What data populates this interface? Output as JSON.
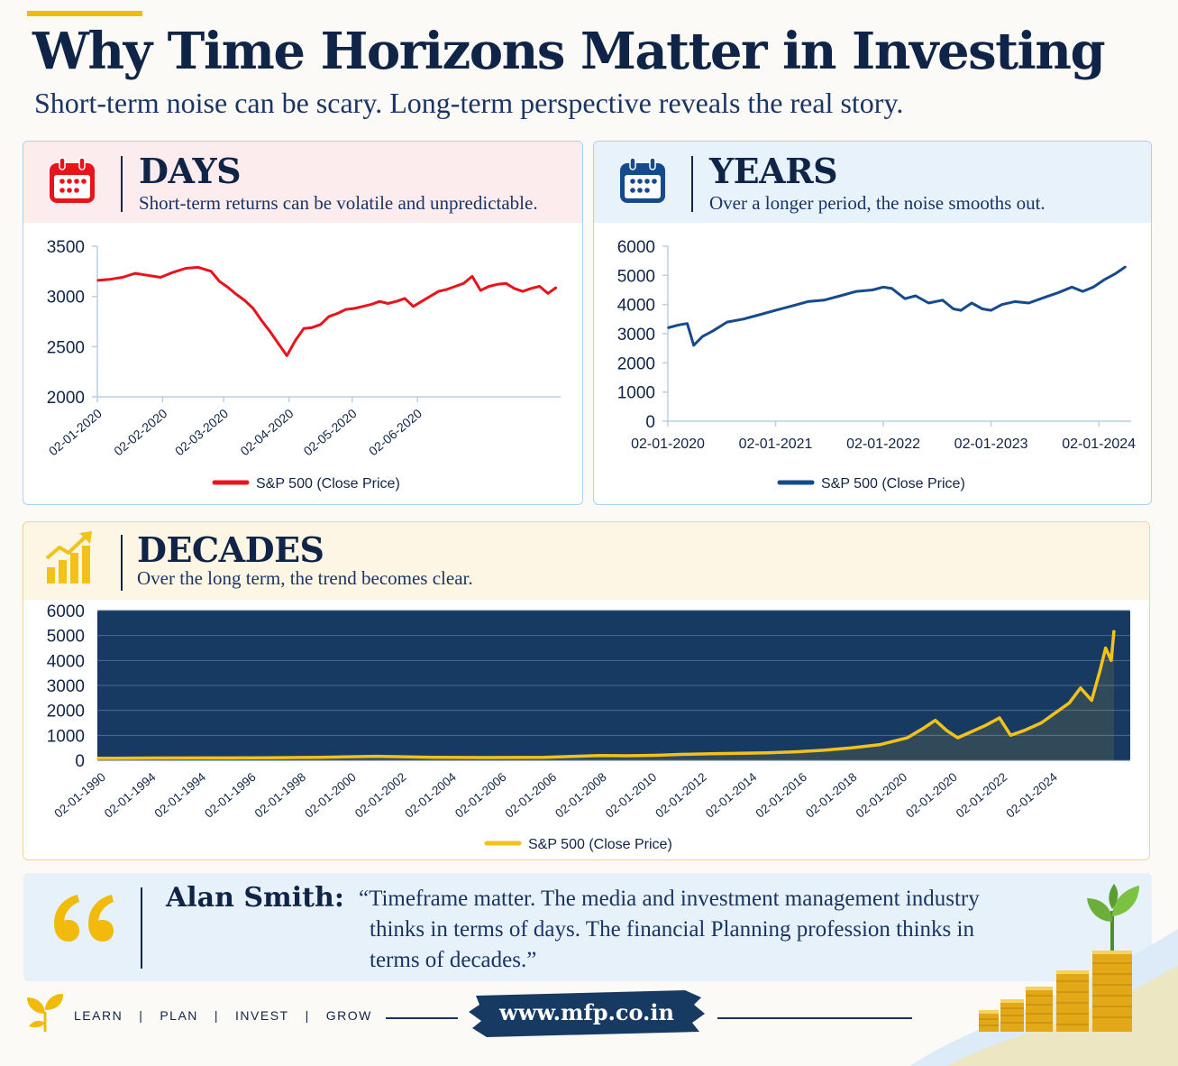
{
  "header": {
    "title": "Why Time Horizons Matter in Investing",
    "subtitle": "Short-term noise can be scary. Long-term perspective reveals the real story."
  },
  "colors": {
    "navy": "#0f2447",
    "days_red": "#e8141b",
    "years_blue": "#154a8c",
    "decades_gold": "#f2c21b",
    "decades_panel": "#173a63"
  },
  "panels": {
    "days": {
      "icon": "calendar-icon",
      "title": "DAYS",
      "description": "Short-term returns can be volatile and unpredictable."
    },
    "years": {
      "icon": "calendar-icon",
      "title": "YEARS",
      "description": "Over a longer period, the noise smooths out."
    },
    "decades": {
      "icon": "growth-chart-icon",
      "title": "DECADES",
      "description": "Over the long term, the trend becomes clear."
    }
  },
  "chart_data": [
    {
      "id": "days",
      "type": "line",
      "ylim": [
        2000,
        3500
      ],
      "yticks": [
        2000,
        2500,
        3000,
        3500
      ],
      "xlim": [
        0,
        220
      ],
      "xticks": [
        {
          "pos": 0,
          "label": "02-01-2020"
        },
        {
          "pos": 31,
          "label": "02-02-2020"
        },
        {
          "pos": 60,
          "label": "02-03-2020"
        },
        {
          "pos": 91,
          "label": "02-04-2020"
        },
        {
          "pos": 121,
          "label": "02-05-2020"
        },
        {
          "pos": 152,
          "label": "02-06-2020"
        }
      ],
      "legend": "bottom-center",
      "grid": false,
      "series": [
        {
          "name": "S&P 500 (Close Price)",
          "points": [
            [
              0,
              3160
            ],
            [
              6,
              3170
            ],
            [
              12,
              3190
            ],
            [
              18,
              3230
            ],
            [
              24,
              3210
            ],
            [
              30,
              3190
            ],
            [
              36,
              3240
            ],
            [
              42,
              3280
            ],
            [
              48,
              3290
            ],
            [
              54,
              3250
            ],
            [
              58,
              3150
            ],
            [
              62,
              3090
            ],
            [
              66,
              3020
            ],
            [
              70,
              2960
            ],
            [
              74,
              2880
            ],
            [
              78,
              2760
            ],
            [
              82,
              2650
            ],
            [
              86,
              2530
            ],
            [
              90,
              2410
            ],
            [
              94,
              2560
            ],
            [
              98,
              2680
            ],
            [
              102,
              2690
            ],
            [
              106,
              2720
            ],
            [
              110,
              2800
            ],
            [
              114,
              2830
            ],
            [
              118,
              2870
            ],
            [
              122,
              2880
            ],
            [
              126,
              2900
            ],
            [
              130,
              2920
            ],
            [
              134,
              2950
            ],
            [
              138,
              2930
            ],
            [
              142,
              2950
            ],
            [
              146,
              2980
            ],
            [
              150,
              2900
            ],
            [
              154,
              2950
            ],
            [
              158,
              3000
            ],
            [
              162,
              3050
            ],
            [
              166,
              3070
            ],
            [
              170,
              3100
            ],
            [
              174,
              3130
            ],
            [
              178,
              3200
            ],
            [
              182,
              3060
            ],
            [
              186,
              3100
            ],
            [
              190,
              3120
            ],
            [
              194,
              3130
            ],
            [
              198,
              3080
            ],
            [
              202,
              3050
            ],
            [
              206,
              3080
            ],
            [
              210,
              3100
            ],
            [
              214,
              3030
            ],
            [
              218,
              3090
            ]
          ]
        }
      ]
    },
    {
      "id": "years",
      "type": "line",
      "ylim": [
        0,
        6000
      ],
      "yticks": [
        0,
        1000,
        2000,
        3000,
        4000,
        5000,
        6000
      ],
      "xlim": [
        0,
        4.3
      ],
      "xticks": [
        {
          "pos": 0,
          "label": "02-01-2020"
        },
        {
          "pos": 1,
          "label": "02-01-2021"
        },
        {
          "pos": 2,
          "label": "02-01-2022"
        },
        {
          "pos": 3,
          "label": "02-01-2023"
        },
        {
          "pos": 4,
          "label": "02-01-2024"
        }
      ],
      "legend": "bottom-center",
      "grid": false,
      "series": [
        {
          "name": "S&P 500 (Close Price)",
          "points": [
            [
              0,
              3200
            ],
            [
              0.1,
              3300
            ],
            [
              0.18,
              3350
            ],
            [
              0.24,
              2600
            ],
            [
              0.32,
              2900
            ],
            [
              0.42,
              3100
            ],
            [
              0.55,
              3400
            ],
            [
              0.7,
              3500
            ],
            [
              0.85,
              3650
            ],
            [
              1.0,
              3800
            ],
            [
              1.15,
              3950
            ],
            [
              1.3,
              4100
            ],
            [
              1.45,
              4150
            ],
            [
              1.6,
              4300
            ],
            [
              1.75,
              4450
            ],
            [
              1.9,
              4500
            ],
            [
              2.0,
              4600
            ],
            [
              2.08,
              4550
            ],
            [
              2.2,
              4200
            ],
            [
              2.3,
              4300
            ],
            [
              2.42,
              4050
            ],
            [
              2.55,
              4150
            ],
            [
              2.65,
              3850
            ],
            [
              2.72,
              3800
            ],
            [
              2.82,
              4050
            ],
            [
              2.92,
              3850
            ],
            [
              3.0,
              3800
            ],
            [
              3.1,
              4000
            ],
            [
              3.22,
              4100
            ],
            [
              3.35,
              4050
            ],
            [
              3.5,
              4250
            ],
            [
              3.62,
              4400
            ],
            [
              3.75,
              4600
            ],
            [
              3.85,
              4450
            ],
            [
              3.95,
              4600
            ],
            [
              4.05,
              4850
            ],
            [
              4.15,
              5050
            ],
            [
              4.25,
              5300
            ]
          ]
        }
      ]
    },
    {
      "id": "decades",
      "type": "area",
      "ylim": [
        0,
        6000
      ],
      "yticks": [
        0,
        1000,
        2000,
        3000,
        4000,
        5000,
        6000
      ],
      "xlim": [
        0,
        36.4
      ],
      "xticks": [
        "02-01-1990",
        "02-01-1994",
        "02-01-1994",
        "02-01-1996",
        "02-01-1998",
        "02-01-2000",
        "02-01-2002",
        "02-01-2004",
        "02-01-2006",
        "02-01-2006",
        "02-01-2008",
        "02-01-2010",
        "02-01-2012",
        "02-01-2014",
        "02-01-2016",
        "02-01-2018",
        "02-01-2020",
        "02-01-2020",
        "02-01-2022",
        "02-01-2024"
      ],
      "legend": "bottom-center",
      "grid": true,
      "series": [
        {
          "name": "S&P 500 (Close Price)",
          "points": [
            [
              0,
              80
            ],
            [
              2,
              90
            ],
            [
              4,
              95
            ],
            [
              6,
              100
            ],
            [
              8,
              120
            ],
            [
              10,
              160
            ],
            [
              12,
              120
            ],
            [
              14,
              110
            ],
            [
              16,
              120
            ],
            [
              17,
              150
            ],
            [
              18,
              190
            ],
            [
              19,
              180
            ],
            [
              20,
              200
            ],
            [
              21,
              240
            ],
            [
              22,
              260
            ],
            [
              23,
              280
            ],
            [
              24,
              300
            ],
            [
              25,
              340
            ],
            [
              26,
              400
            ],
            [
              27,
              500
            ],
            [
              28,
              620
            ],
            [
              29,
              900
            ],
            [
              29.6,
              1300
            ],
            [
              30,
              1600
            ],
            [
              30.4,
              1200
            ],
            [
              30.8,
              900
            ],
            [
              31.2,
              1100
            ],
            [
              31.8,
              1400
            ],
            [
              32.3,
              1700
            ],
            [
              32.7,
              1000
            ],
            [
              33.2,
              1200
            ],
            [
              33.8,
              1500
            ],
            [
              34.3,
              1900
            ],
            [
              34.8,
              2300
            ],
            [
              35.2,
              2900
            ],
            [
              35.6,
              2400
            ],
            [
              35.9,
              3600
            ],
            [
              36.1,
              4500
            ],
            [
              36.3,
              4000
            ],
            [
              36.4,
              5200
            ]
          ]
        }
      ]
    }
  ],
  "quote": {
    "author": "Alan Smith:",
    "text": "“Timeframe matter. The media and investment management industry thinks in terms of days. The financial Planning profession thinks in terms of decades.”"
  },
  "footer": {
    "nav": [
      "LEARN",
      "PLAN",
      "INVEST",
      "GROW"
    ],
    "url": "www.mfp.co.in"
  }
}
